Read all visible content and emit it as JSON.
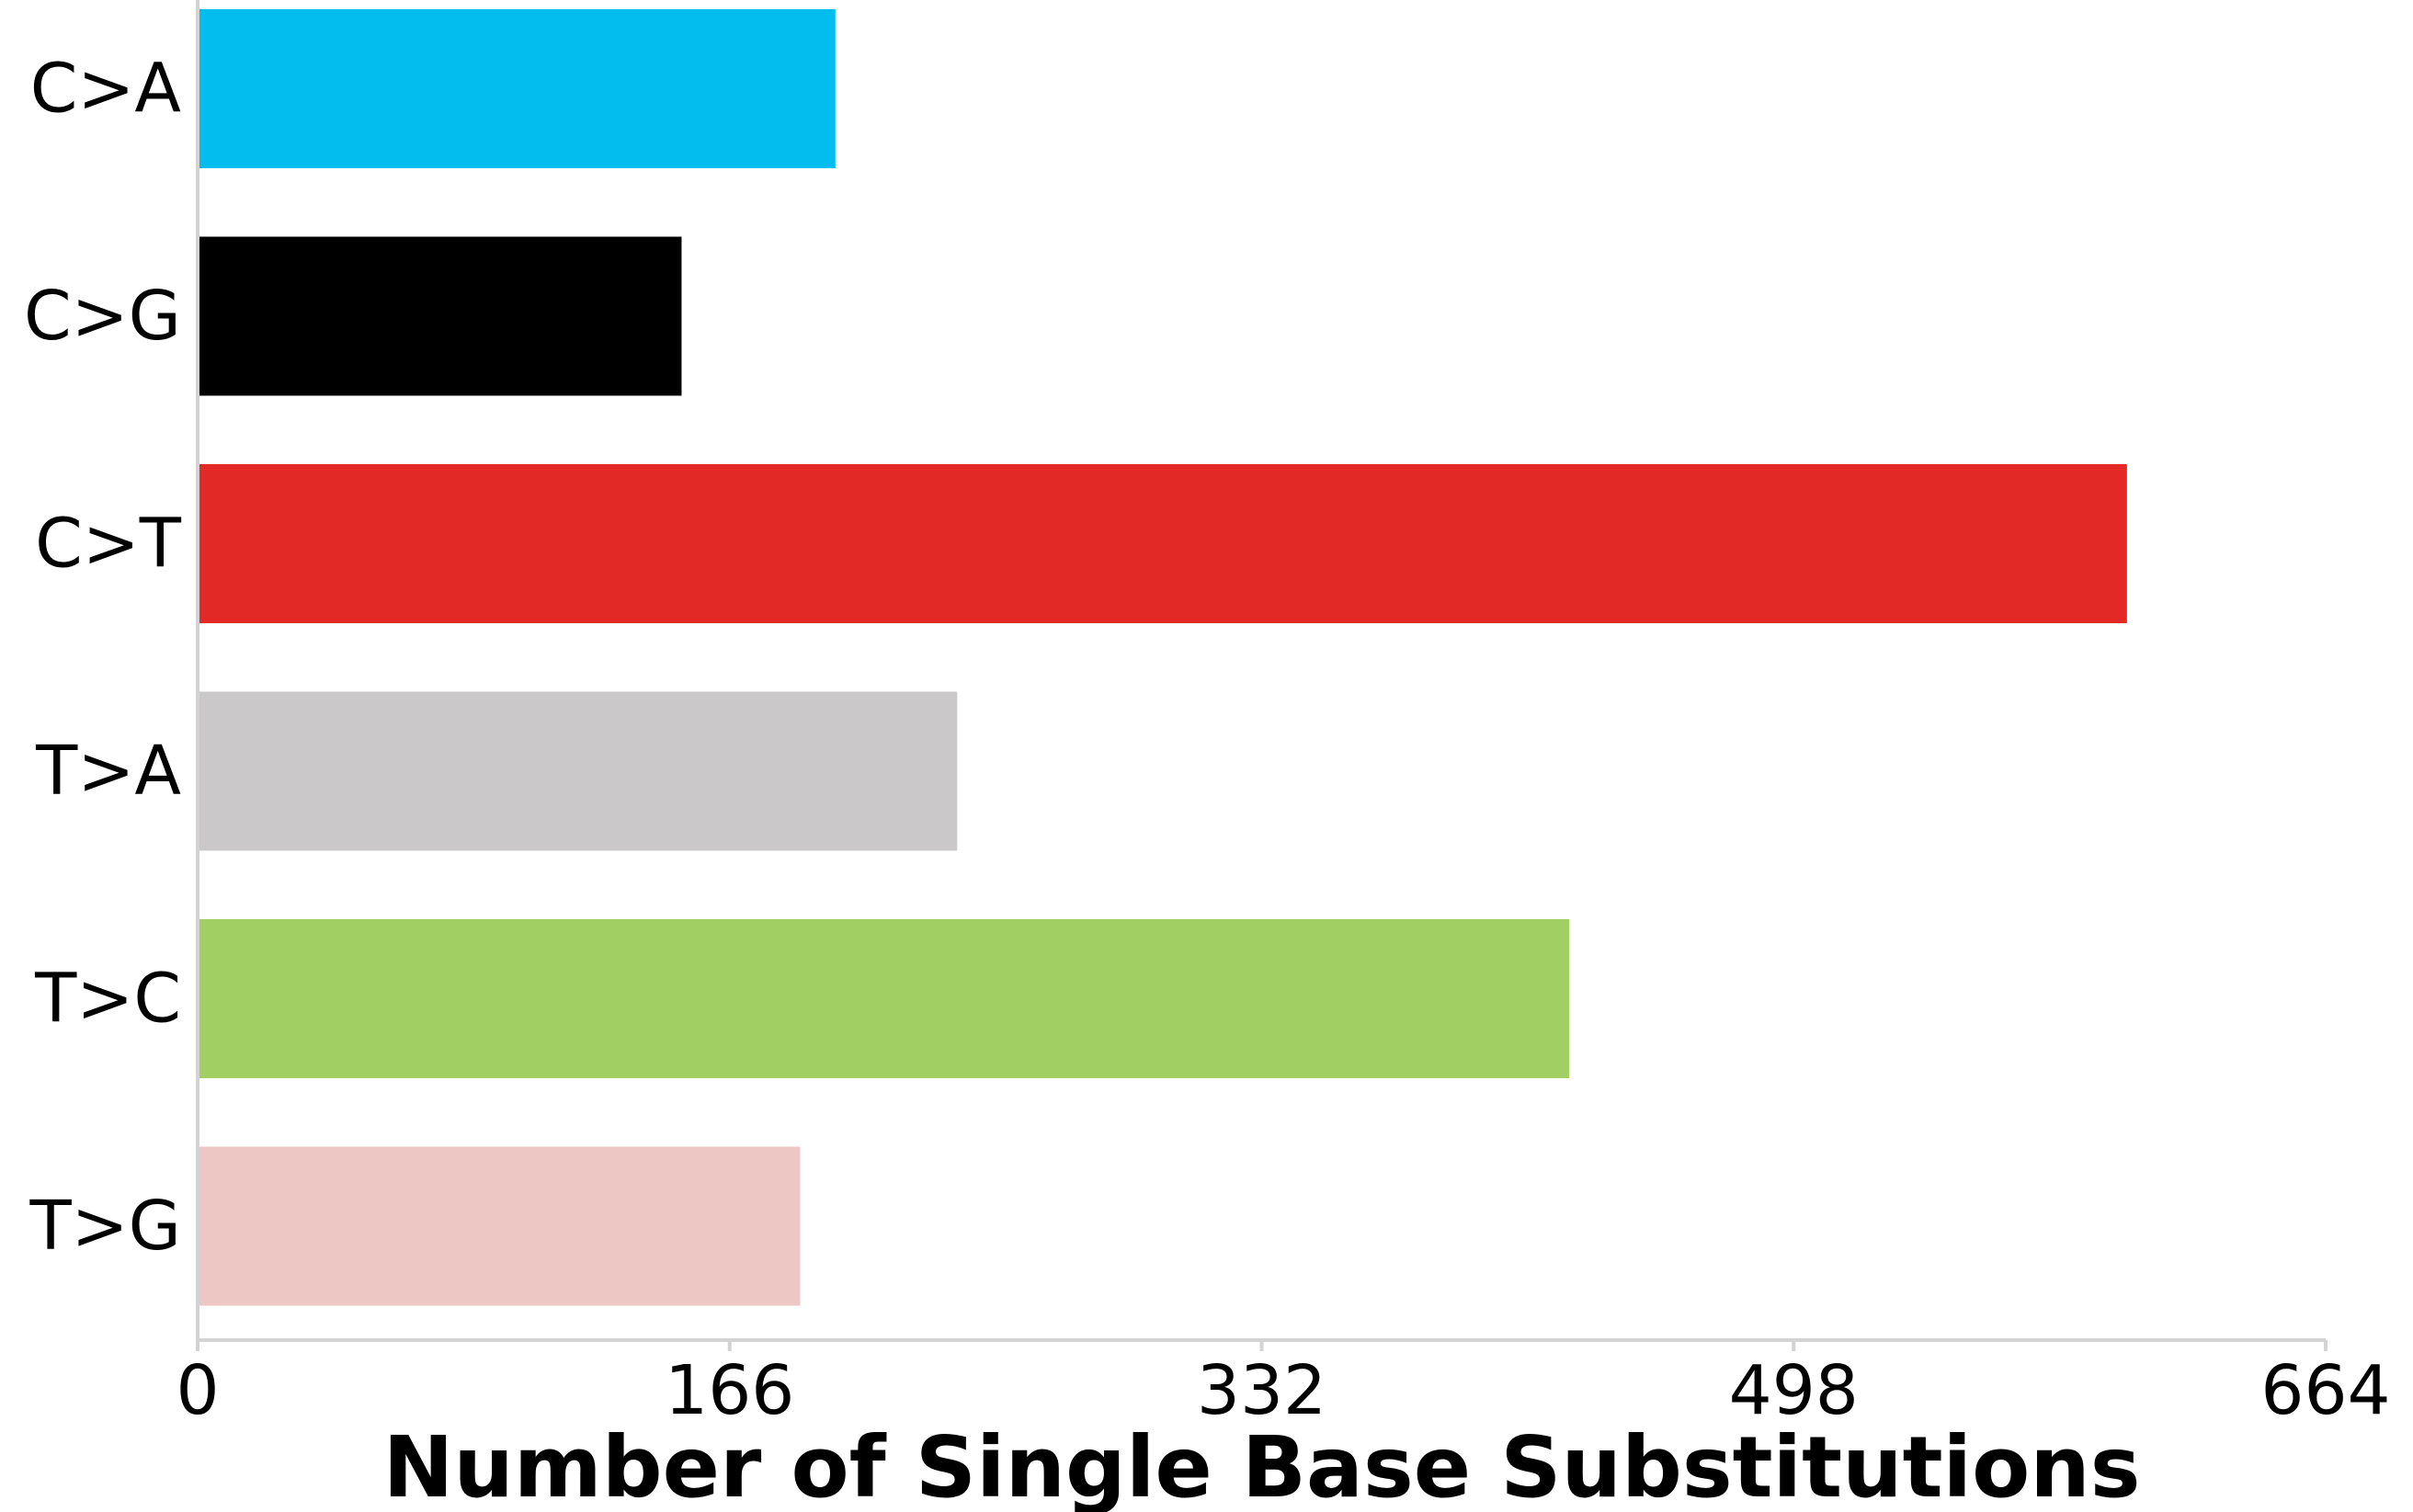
{
  "chart_data": {
    "type": "bar",
    "orientation": "horizontal",
    "title": "",
    "xlabel": "Number of Single Base Substitutions",
    "ylabel": "",
    "xlim": [
      0,
      664
    ],
    "xticks": [
      "0",
      "166",
      "332",
      "498",
      "664"
    ],
    "grid": false,
    "legend": "none",
    "categories": [
      "C>A",
      "C>G",
      "C>T",
      "T>A",
      "T>C",
      "T>G"
    ],
    "values": [
      199,
      151,
      602,
      237,
      428,
      188
    ],
    "colors": [
      "#03bdee",
      "#000000",
      "#e22926",
      "#cac8c9",
      "#a2cf63",
      "#ecc7c4"
    ],
    "axis_color": "#d3d3d3"
  }
}
